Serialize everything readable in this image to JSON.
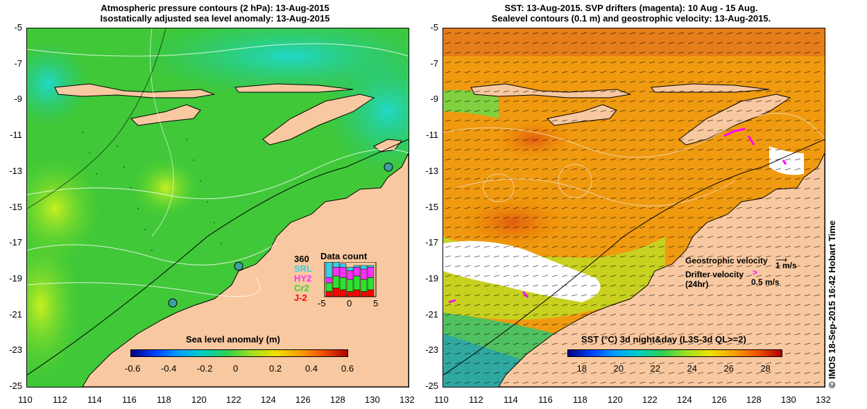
{
  "left_panel": {
    "title_line1": "Atmospheric pressure contours (2 hPa): 13-Aug-2015",
    "title_line2": "Isostatically adjusted sea level anomaly: 13-Aug-2015",
    "colorbar": {
      "label": "Sea level anomaly (m)",
      "ticks": [
        "-0.6",
        "-0.4",
        "-0.2",
        "0",
        "0.2",
        "0.4",
        "0.6"
      ]
    },
    "data_count": {
      "title": "Data count",
      "max": "360",
      "series": [
        {
          "name": "SRL",
          "color": "#39d0e6"
        },
        {
          "name": "HY2",
          "color": "#ff30ff"
        },
        {
          "name": "Cr2",
          "color": "#30e030"
        },
        {
          "name": "J-2",
          "color": "#ff0000"
        }
      ],
      "xticks": [
        "-5",
        "0",
        "5"
      ],
      "bars": [
        {
          "srl": 0.45,
          "hy2": 0.15,
          "cr2": 0.25,
          "j2": 0.15
        },
        {
          "srl": 0.15,
          "hy2": 0.25,
          "cr2": 0.35,
          "j2": 0.25
        },
        {
          "srl": 0.1,
          "hy2": 0.3,
          "cr2": 0.35,
          "j2": 0.2
        },
        {
          "srl": 0.1,
          "hy2": 0.25,
          "cr2": 0.35,
          "j2": 0.15
        },
        {
          "srl": 0.05,
          "hy2": 0.25,
          "cr2": 0.4,
          "j2": 0.2
        },
        {
          "srl": 0.1,
          "hy2": 0.3,
          "cr2": 0.35,
          "j2": 0.15
        },
        {
          "srl": 0.05,
          "hy2": 0.3,
          "cr2": 0.35,
          "j2": 0.2
        }
      ]
    }
  },
  "right_panel": {
    "title_line1": "SST: 13-Aug-2015. SVP drifters (magenta): 10 Aug - 15 Aug.",
    "title_line2": "Sealevel contours (0.1 m) and geostrophic velocity: 13-Aug-2015.",
    "geostrophic_label": "Geostrophic velocity",
    "geostrophic_scale": "1 m/s",
    "drifter_label": "Drifter velocity",
    "drifter_sub": "(24hr)",
    "drifter_scale": "0.5 m/s",
    "colorbar": {
      "label": "SST (°C) 3d night&day (L3S-3d QL>=2)",
      "ticks": [
        "18",
        "20",
        "22",
        "24",
        "26",
        "28"
      ]
    }
  },
  "axes": {
    "lat_ticks": [
      "-5",
      "-7",
      "-9",
      "-11",
      "-13",
      "-15",
      "-17",
      "-19",
      "-21",
      "-23",
      "-25"
    ],
    "lon_ticks": [
      "110",
      "112",
      "114",
      "116",
      "118",
      "120",
      "122",
      "124",
      "126",
      "128",
      "130",
      "132"
    ]
  },
  "copyright": "© IMOS 18-Sep-2015 16:42 Hobart Time",
  "colors": {
    "land": "#f8c8a0",
    "sea_green": "#2cc040",
    "sst_orange": "#f09000"
  }
}
